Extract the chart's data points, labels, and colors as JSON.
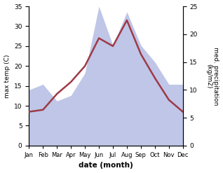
{
  "months": [
    "Jan",
    "Feb",
    "Mar",
    "Apr",
    "May",
    "Jun",
    "Jul",
    "Aug",
    "Sep",
    "Oct",
    "Nov",
    "Dec"
  ],
  "temp_max": [
    8.5,
    9.0,
    13.0,
    16.0,
    20.0,
    27.0,
    25.0,
    31.5,
    23.0,
    17.0,
    11.5,
    8.5
  ],
  "precipitation": [
    10.0,
    11.0,
    8.0,
    9.0,
    13.0,
    25.0,
    18.0,
    24.0,
    18.0,
    15.0,
    11.0,
    11.0
  ],
  "temp_ylim": [
    0,
    35
  ],
  "precip_ylim": [
    0,
    25
  ],
  "temp_yticks": [
    0,
    5,
    10,
    15,
    20,
    25,
    30,
    35
  ],
  "precip_yticks": [
    0,
    5,
    10,
    15,
    20,
    25
  ],
  "fill_color": "#aab4e0",
  "fill_alpha": 0.75,
  "line_color": "#9e3a47",
  "line_width": 1.8,
  "xlabel": "date (month)",
  "ylabel_left": "max temp (C)",
  "ylabel_right": "med. precipitation\n(kg/m2)"
}
